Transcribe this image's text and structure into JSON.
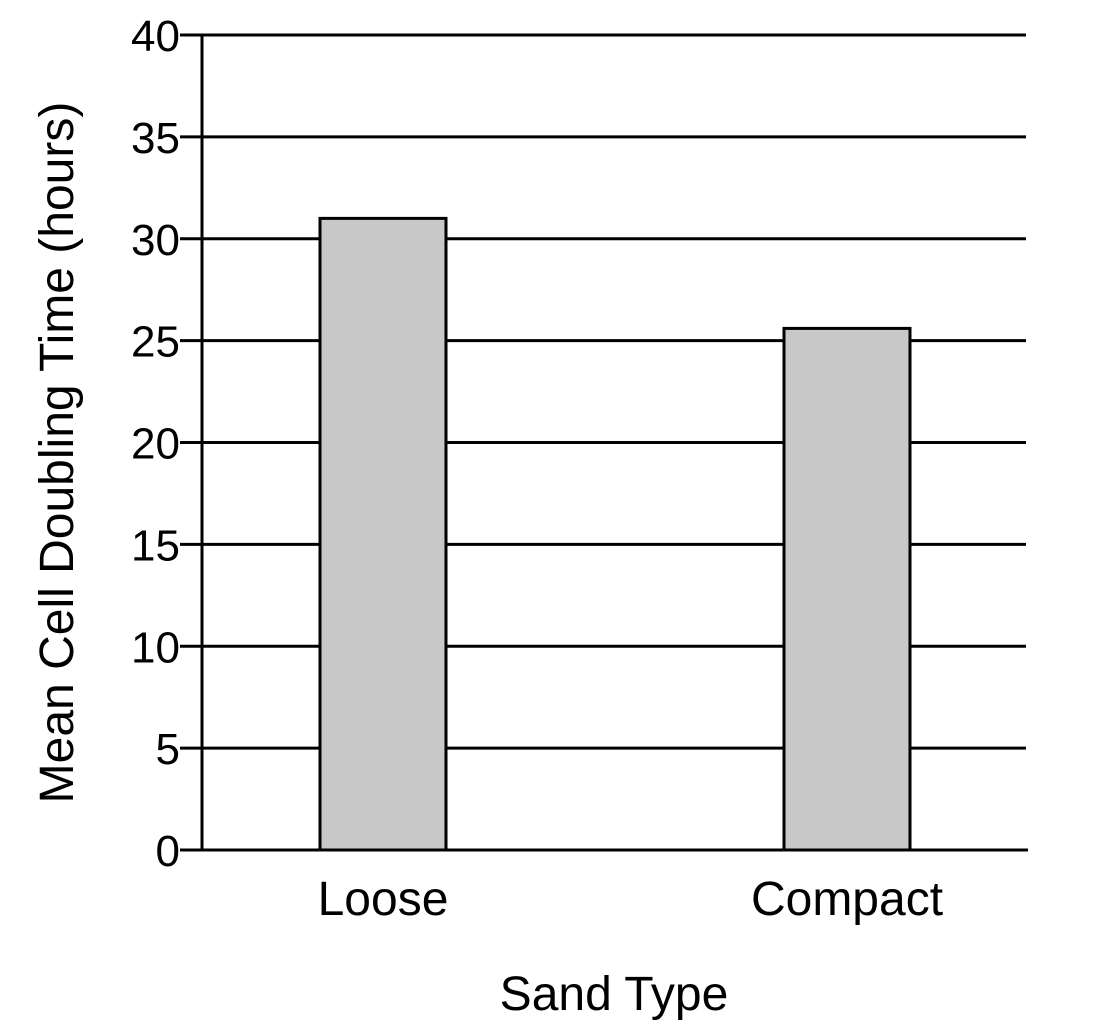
{
  "chart_data": {
    "type": "bar",
    "title": "",
    "xlabel": "Sand Type",
    "ylabel": "Mean Cell Doubling Time (hours)",
    "categories": [
      "Loose",
      "Compact"
    ],
    "values": [
      31,
      25.6
    ],
    "ylim": [
      0,
      40
    ],
    "yticks": [
      0,
      5,
      10,
      15,
      20,
      25,
      30,
      35,
      40
    ],
    "grid": true,
    "legend": "none",
    "colors": {
      "bar_fill": "#c8c8c8",
      "bar_stroke": "#000000",
      "grid": "#000000",
      "axis": "#000000"
    }
  }
}
